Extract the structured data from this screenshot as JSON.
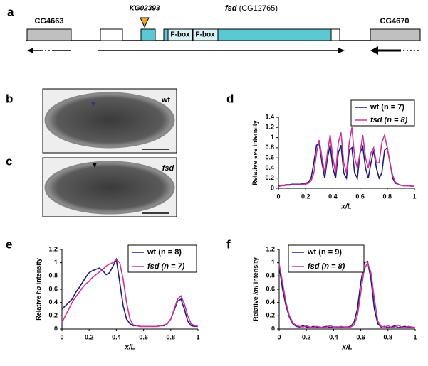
{
  "panel_labels": [
    "a",
    "b",
    "c",
    "d",
    "e",
    "f"
  ],
  "gene_map": {
    "left_gene": "CG4663",
    "insertion": "KG02393",
    "gene_name": "fsd",
    "gene_id": "(CG12765)",
    "domains": [
      "F-box",
      "F-box"
    ],
    "right_gene": "CG4670"
  },
  "embryos": [
    {
      "genotype": "wt"
    },
    {
      "genotype": "fsd"
    }
  ],
  "chart_data": [
    {
      "type": "line",
      "xlabel": "x/L",
      "ylabel_parts": [
        "Relative ",
        "eve",
        " intensity"
      ],
      "x": [
        0,
        0.02,
        0.04,
        0.06,
        0.08,
        0.1,
        0.12,
        0.14,
        0.16,
        0.18,
        0.2,
        0.22,
        0.24,
        0.26,
        0.28,
        0.3,
        0.32,
        0.34,
        0.36,
        0.38,
        0.4,
        0.42,
        0.44,
        0.46,
        0.48,
        0.5,
        0.52,
        0.54,
        0.56,
        0.58,
        0.6,
        0.62,
        0.64,
        0.66,
        0.68,
        0.7,
        0.72,
        0.74,
        0.76,
        0.78,
        0.8,
        0.82,
        0.84,
        0.86,
        0.88,
        0.9,
        0.92,
        0.94,
        0.96,
        0.98,
        1
      ],
      "series": [
        {
          "name": "wt (n = 7)",
          "color": "#1c1c78",
          "values": [
            0.05,
            0.06,
            0.06,
            0.07,
            0.07,
            0.08,
            0.08,
            0.08,
            0.08,
            0.09,
            0.1,
            0.12,
            0.2,
            0.5,
            0.85,
            0.88,
            0.5,
            0.2,
            0.6,
            0.85,
            0.4,
            0.2,
            0.7,
            0.85,
            0.3,
            0.2,
            0.75,
            0.8,
            0.3,
            0.2,
            0.7,
            0.82,
            0.4,
            0.2,
            0.5,
            0.75,
            0.4,
            0.2,
            0.3,
            0.75,
            0.8,
            0.5,
            0.2,
            0.1,
            0.08,
            0.06,
            0.05,
            0.05,
            0.05,
            0.04,
            0.04
          ]
        },
        {
          "name": "fsd (n = 8)",
          "color": "#cc3399",
          "values": [
            0.03,
            0.05,
            0.05,
            0.06,
            0.06,
            0.07,
            0.07,
            0.07,
            0.07,
            0.08,
            0.08,
            0.1,
            0.15,
            0.3,
            0.7,
            0.95,
            0.6,
            0.3,
            0.7,
            1.05,
            0.6,
            0.3,
            0.9,
            1.1,
            0.5,
            0.3,
            0.9,
            1.2,
            0.6,
            0.4,
            0.7,
            1.05,
            0.6,
            0.4,
            0.7,
            0.8,
            0.5,
            0.5,
            0.9,
            1.05,
            0.8,
            0.5,
            0.25,
            0.12,
            0.08,
            0.06,
            0.05,
            0.05,
            0.05,
            0.04,
            0.04
          ]
        }
      ],
      "xlim": [
        0,
        1
      ],
      "xticks": [
        0,
        0.2,
        0.4,
        0.6,
        0.8,
        1
      ],
      "ylim": [
        0,
        1.4
      ],
      "yticks": [
        0,
        0.2,
        0.4,
        0.6,
        0.8,
        1,
        1.2,
        1.4
      ]
    },
    {
      "type": "line",
      "xlabel": "x/L",
      "ylabel_parts": [
        "Relative ",
        "hb",
        " intensity"
      ],
      "x": [
        0,
        0.025,
        0.05,
        0.075,
        0.1,
        0.125,
        0.15,
        0.175,
        0.2,
        0.225,
        0.25,
        0.275,
        0.3,
        0.325,
        0.35,
        0.375,
        0.4,
        0.425,
        0.45,
        0.475,
        0.5,
        0.525,
        0.55,
        0.575,
        0.6,
        0.625,
        0.65,
        0.675,
        0.7,
        0.725,
        0.75,
        0.775,
        0.8,
        0.825,
        0.85,
        0.875,
        0.9,
        0.925,
        0.95,
        0.975,
        1
      ],
      "series": [
        {
          "name": "wt (n = 8)",
          "color": "#1c1c78",
          "values": [
            0.3,
            0.35,
            0.4,
            0.45,
            0.55,
            0.62,
            0.7,
            0.78,
            0.85,
            0.88,
            0.9,
            0.92,
            0.88,
            0.82,
            0.85,
            0.95,
            1.05,
            0.7,
            0.35,
            0.15,
            0.08,
            0.05,
            0.05,
            0.04,
            0.04,
            0.04,
            0.04,
            0.04,
            0.04,
            0.05,
            0.05,
            0.08,
            0.15,
            0.28,
            0.42,
            0.45,
            0.3,
            0.12,
            0.05,
            0.04,
            0.04
          ]
        },
        {
          "name": "fsd (n = 7)",
          "color": "#cc3399",
          "values": [
            0.1,
            0.2,
            0.3,
            0.4,
            0.48,
            0.55,
            0.62,
            0.68,
            0.72,
            0.78,
            0.82,
            0.86,
            0.9,
            0.95,
            0.98,
            1.0,
            1.05,
            1.0,
            0.75,
            0.4,
            0.15,
            0.06,
            0.05,
            0.04,
            0.04,
            0.04,
            0.04,
            0.04,
            0.04,
            0.05,
            0.06,
            0.08,
            0.15,
            0.3,
            0.45,
            0.5,
            0.38,
            0.2,
            0.08,
            0.05,
            0.04
          ]
        }
      ],
      "xlim": [
        0,
        1
      ],
      "xticks": [
        0,
        0.2,
        0.4,
        0.6,
        0.8,
        1
      ],
      "ylim": [
        0,
        1.2
      ],
      "yticks": [
        0,
        0.2,
        0.4,
        0.6,
        0.8,
        1,
        1.2
      ]
    },
    {
      "type": "line",
      "xlabel": "x/L",
      "ylabel_parts": [
        "Relative ",
        "kni",
        " intensity"
      ],
      "x": [
        0,
        0.025,
        0.05,
        0.075,
        0.1,
        0.125,
        0.15,
        0.175,
        0.2,
        0.225,
        0.25,
        0.275,
        0.3,
        0.325,
        0.35,
        0.375,
        0.4,
        0.425,
        0.45,
        0.475,
        0.5,
        0.525,
        0.55,
        0.575,
        0.6,
        0.625,
        0.65,
        0.675,
        0.7,
        0.725,
        0.75,
        0.775,
        0.8,
        0.825,
        0.85,
        0.875,
        0.9,
        0.925,
        0.95,
        0.975,
        1
      ],
      "series": [
        {
          "name": "wt (n = 9)",
          "color": "#1c1c78",
          "values": [
            0.95,
            0.6,
            0.35,
            0.18,
            0.08,
            0.04,
            0.03,
            0.05,
            0.03,
            0.02,
            0.04,
            0.03,
            0.02,
            0.03,
            0.04,
            0.02,
            0.03,
            0.03,
            0.02,
            0.03,
            0.03,
            0.04,
            0.1,
            0.3,
            0.7,
            1.0,
            1.02,
            0.75,
            0.3,
            0.08,
            0.03,
            0.04,
            0.02,
            0.03,
            0.05,
            0.02,
            0.03,
            0.04,
            0.02,
            0.03,
            0.02
          ]
        },
        {
          "name": "fsd (n = 8)",
          "color": "#cc3399",
          "values": [
            0.98,
            0.7,
            0.4,
            0.2,
            0.1,
            0.05,
            0.04,
            0.03,
            0.05,
            0.03,
            0.02,
            0.04,
            0.03,
            0.02,
            0.03,
            0.05,
            0.03,
            0.02,
            0.04,
            0.03,
            0.03,
            0.03,
            0.06,
            0.2,
            0.55,
            0.9,
            1.0,
            0.85,
            0.45,
            0.12,
            0.04,
            0.03,
            0.05,
            0.02,
            0.03,
            0.06,
            0.03,
            0.02,
            0.04,
            0.03,
            0.02
          ]
        }
      ],
      "xlim": [
        0,
        1
      ],
      "xticks": [
        0,
        0.2,
        0.4,
        0.6,
        0.8,
        1
      ],
      "ylim": [
        0,
        1.2
      ],
      "yticks": [
        0,
        0.2,
        0.4,
        0.6,
        0.8,
        1,
        1.2
      ]
    }
  ]
}
